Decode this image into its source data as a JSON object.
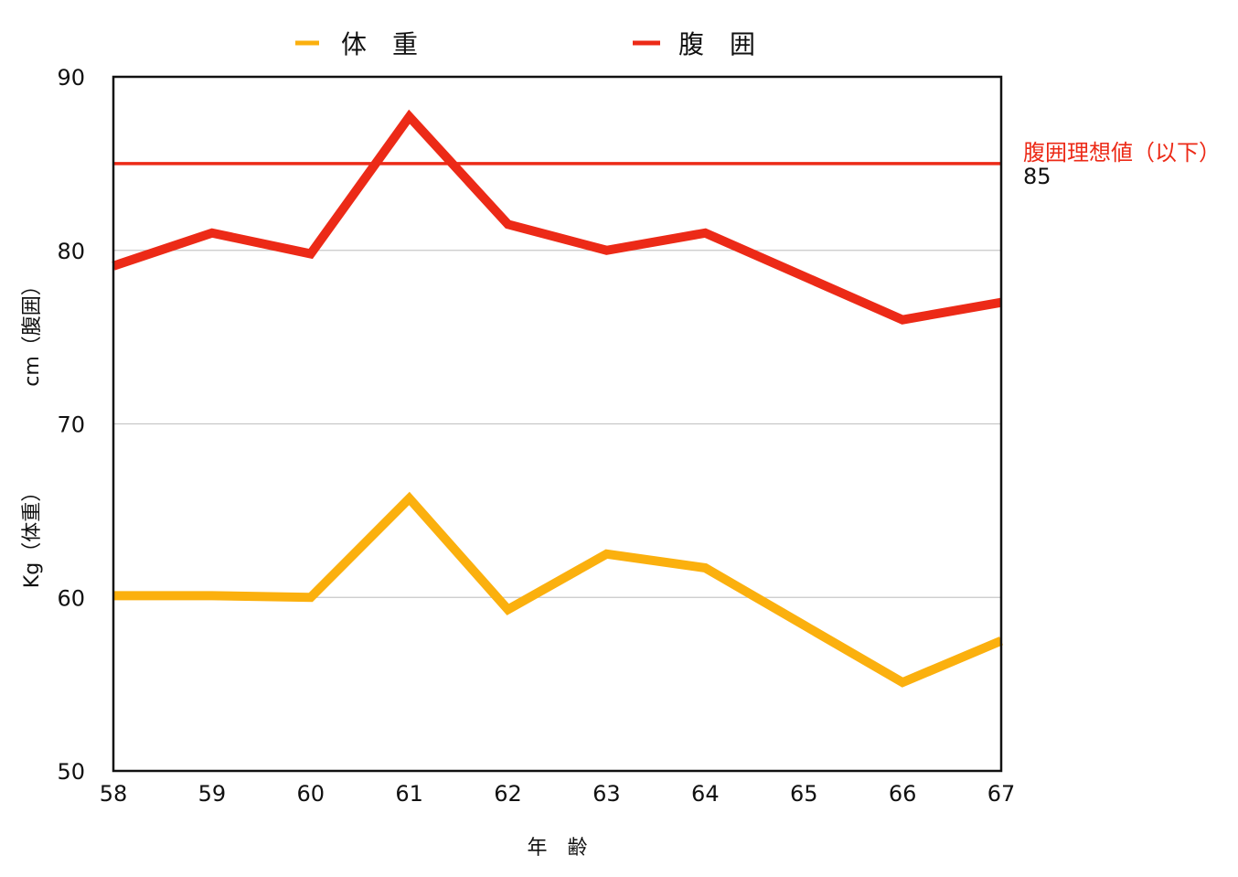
{
  "chart_data": {
    "type": "line",
    "x": [
      58,
      59,
      60,
      61,
      62,
      63,
      64,
      65,
      66,
      67
    ],
    "xlabel": "年　齢",
    "ylabel_top": "cm（腹囲）",
    "ylabel_bottom": "Kg（体重）",
    "ylim": [
      50,
      90
    ],
    "yticks": [
      50,
      60,
      70,
      80,
      90
    ],
    "grid": true,
    "legend_position": "top",
    "series": [
      {
        "name": "体　重",
        "color": "#fbb00e",
        "values": [
          60.1,
          60.1,
          60.0,
          65.7,
          59.3,
          62.5,
          61.7,
          58.4,
          55.1,
          57.5
        ]
      },
      {
        "name": "腹　囲",
        "color": "#ec2a17",
        "values": [
          79.1,
          81.0,
          79.8,
          87.7,
          81.5,
          80.0,
          81.0,
          78.5,
          76.0,
          77.0
        ]
      }
    ],
    "reference_line": {
      "label": "腹囲理想値（以下）",
      "value": 85,
      "value_label": "85",
      "color": "#ec2a17"
    }
  }
}
